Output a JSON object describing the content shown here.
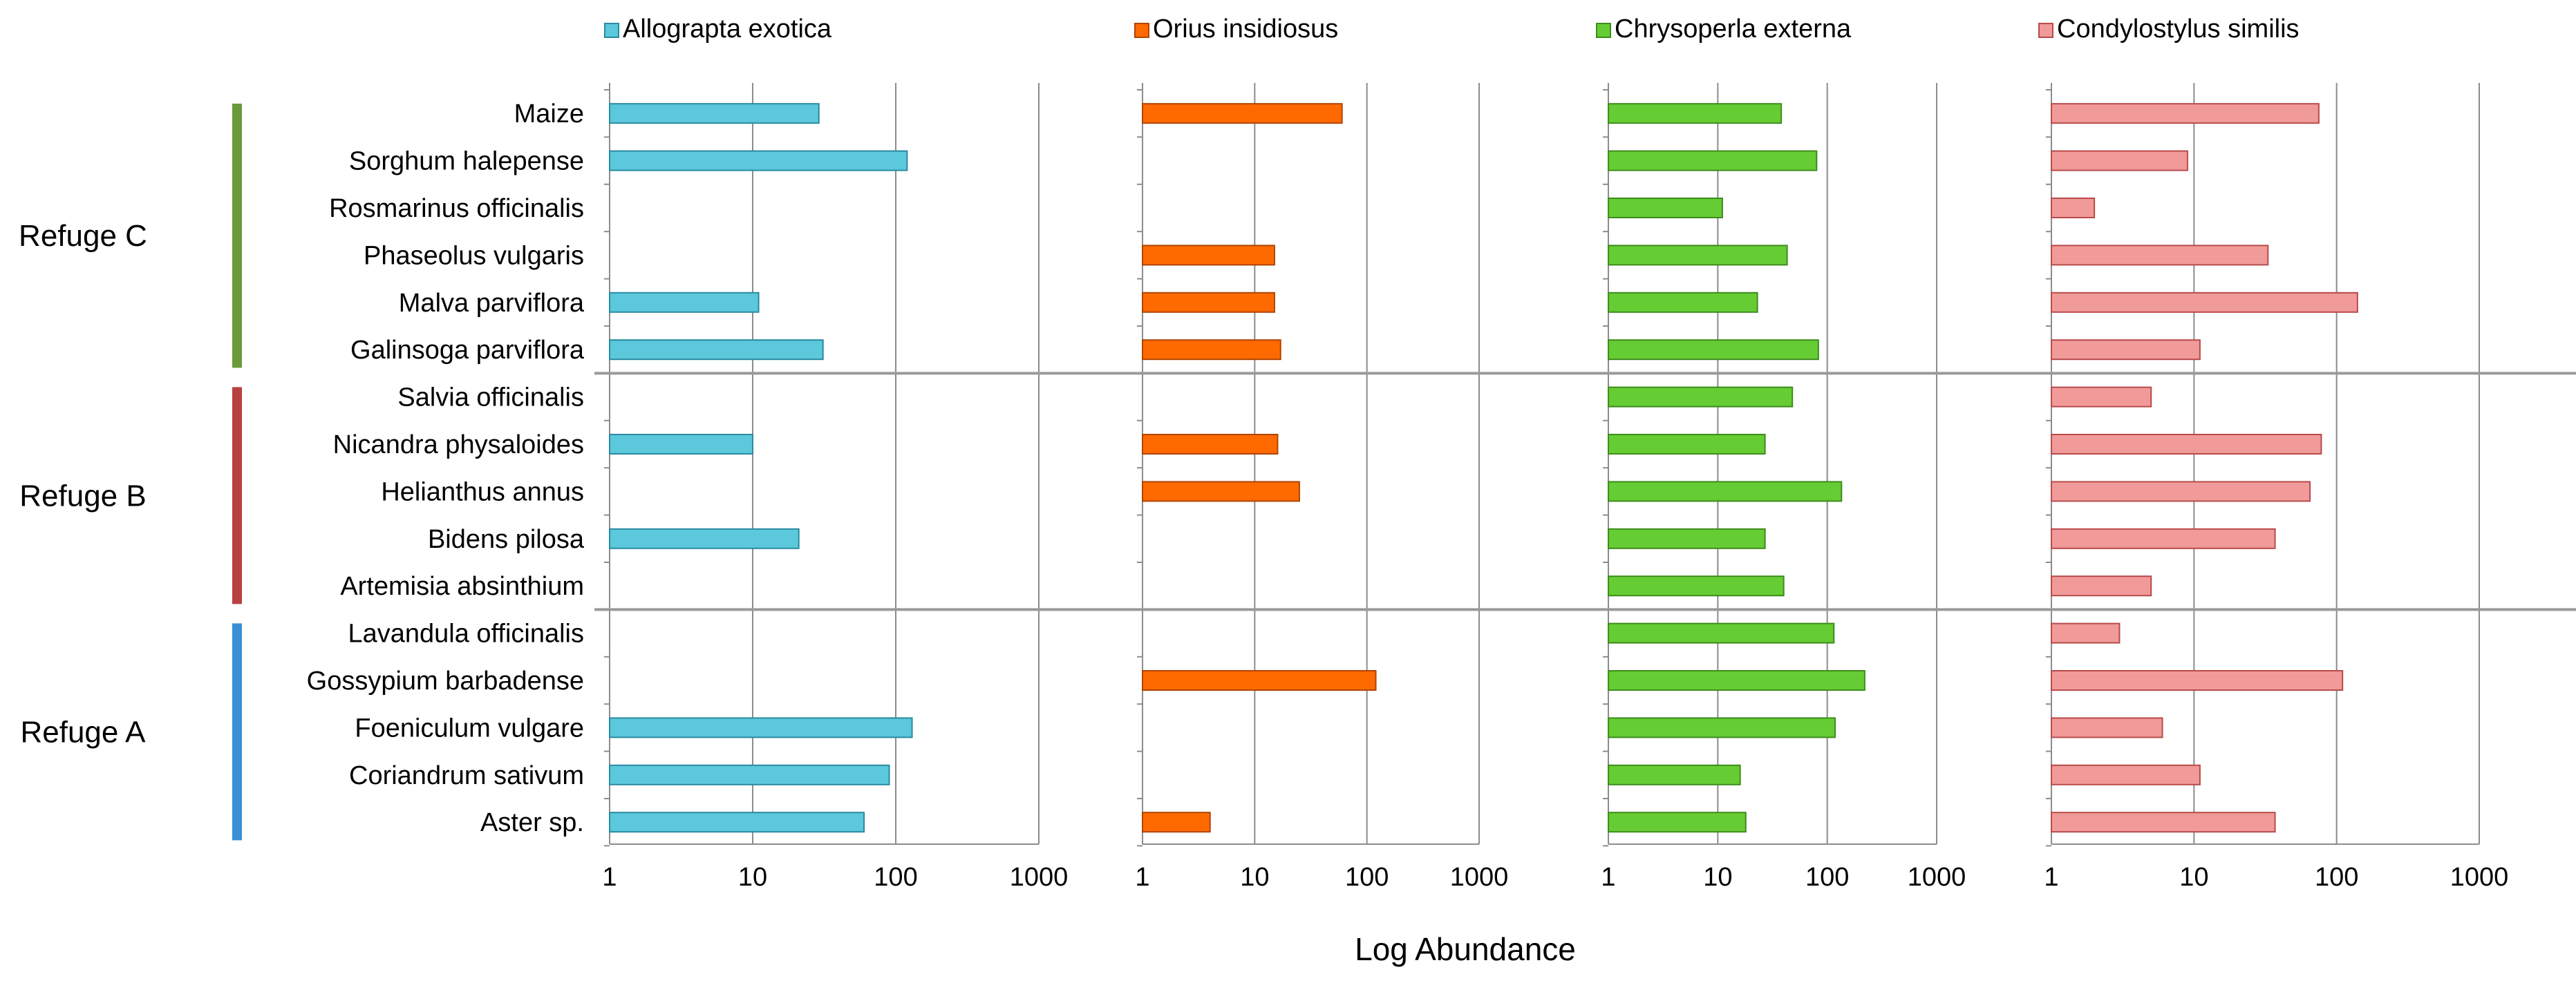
{
  "chart_data": {
    "type": "bar",
    "orientation": "horizontal",
    "scale": "log",
    "xlabel": "Log Abundance",
    "xlim": [
      1,
      1000
    ],
    "xticks": [
      "1",
      "10",
      "100",
      "1000"
    ],
    "categories": [
      "Maize",
      "Sorghum halepense",
      "Rosmarinus officinalis",
      "Phaseolus vulgaris",
      "Malva parviflora",
      "Galinsoga parviflora",
      "Salvia officinalis",
      "Nicandra physaloides",
      "Helianthus annus",
      "Bidens pilosa",
      "Artemisia absinthium",
      "Lavandula officinalis",
      "Gossypium barbadense",
      "Foeniculum vulgare",
      "Coriandrum sativum",
      "Aster sp."
    ],
    "groups": [
      {
        "label": "Refuge C",
        "start": 0,
        "end": 5,
        "color": "#6a9a3a"
      },
      {
        "label": "Refuge B",
        "start": 6,
        "end": 10,
        "color": "#b94040"
      },
      {
        "label": "Refuge A",
        "start": 11,
        "end": 15,
        "color": "#3a8fd6"
      }
    ],
    "series": [
      {
        "name": "Allograpta exotica",
        "color": "#5bc8dc",
        "stroke": "#2a8aa0",
        "values": [
          29,
          120,
          null,
          null,
          11,
          31,
          null,
          10,
          null,
          21,
          null,
          null,
          null,
          130,
          90,
          60
        ]
      },
      {
        "name": "Orius insidiosus",
        "color": "#ff6a00",
        "stroke": "#b04400",
        "values": [
          60,
          null,
          null,
          15,
          15,
          17,
          null,
          16,
          25,
          null,
          null,
          null,
          120,
          null,
          null,
          4
        ]
      },
      {
        "name": "Chrysoperla externa",
        "color": "#66cc33",
        "stroke": "#3d8c1c",
        "values": [
          38,
          80,
          11,
          43,
          23,
          83,
          48,
          27,
          135,
          27,
          40,
          115,
          220,
          118,
          16,
          18
        ]
      },
      {
        "name": "Condylostylus similis",
        "color": "#f19a9a",
        "stroke": "#b84a4a",
        "values": [
          75,
          9,
          2,
          33,
          140,
          11,
          5,
          78,
          65,
          37,
          5,
          3,
          110,
          6,
          11,
          37
        ]
      }
    ]
  }
}
